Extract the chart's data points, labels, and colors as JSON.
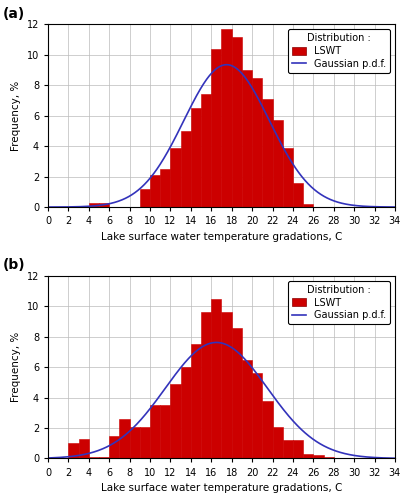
{
  "panel_a": {
    "label": "(a)",
    "bar_left_edges": [
      0,
      1,
      2,
      3,
      4,
      5,
      6,
      7,
      8,
      9,
      10,
      11,
      12,
      13,
      14,
      15,
      16,
      17,
      18,
      19,
      20,
      21,
      22,
      23,
      24,
      25,
      26,
      27,
      28,
      29,
      30,
      31,
      32,
      33
    ],
    "bar_values": [
      0,
      0,
      0,
      0,
      0.3,
      0.3,
      0,
      0,
      0,
      1.2,
      2.1,
      2.5,
      3.9,
      5.0,
      6.5,
      7.4,
      10.4,
      11.7,
      11.2,
      9.0,
      8.5,
      7.1,
      5.7,
      3.9,
      1.6,
      0.2,
      0,
      0,
      0,
      0,
      0,
      0,
      0,
      0
    ],
    "gauss_mean": 17.5,
    "gauss_std": 4.2
  },
  "panel_b": {
    "label": "(b)",
    "bar_left_edges": [
      0,
      1,
      2,
      3,
      4,
      5,
      6,
      7,
      8,
      9,
      10,
      11,
      12,
      13,
      14,
      15,
      16,
      17,
      18,
      19,
      20,
      21,
      22,
      23,
      24,
      25,
      26,
      27,
      28,
      29,
      30,
      31,
      32,
      33
    ],
    "bar_values": [
      0,
      0.05,
      1.0,
      1.3,
      0.1,
      0.1,
      1.5,
      2.6,
      2.1,
      2.1,
      3.5,
      3.5,
      4.9,
      6.0,
      7.5,
      9.6,
      10.5,
      9.6,
      8.6,
      6.5,
      5.6,
      3.8,
      2.1,
      1.2,
      1.2,
      0.3,
      0.2,
      0.1,
      0,
      0,
      0,
      0,
      0,
      0
    ],
    "gauss_mean": 16.5,
    "gauss_std": 5.0
  },
  "bar_color": "#cc0000",
  "bar_edgecolor": "#cc0000",
  "gauss_color": "#3333bb",
  "xlim": [
    0,
    34
  ],
  "ylim": [
    0,
    12
  ],
  "yticks": [
    0,
    2,
    4,
    6,
    8,
    10,
    12
  ],
  "xticks": [
    0,
    2,
    4,
    6,
    8,
    10,
    12,
    14,
    16,
    18,
    20,
    22,
    24,
    26,
    28,
    30,
    32,
    34
  ],
  "xlabel": "Lake surface water temperature gradations, C",
  "ylabel": "Frequency, %",
  "legend_title": "Distribution :",
  "legend_bar_label": "LSWT",
  "legend_line_label": "Gaussian p.d.f.",
  "grid_color": "#bbbbbb",
  "background_color": "#ffffff",
  "fig_background": "#ffffff"
}
